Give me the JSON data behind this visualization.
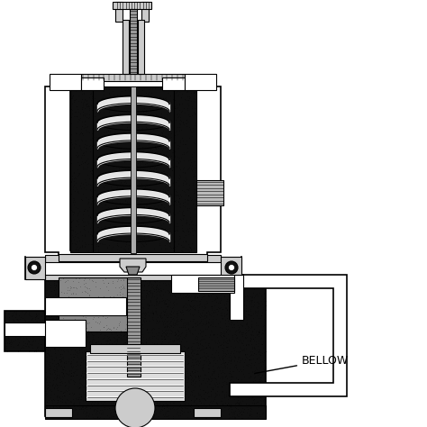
{
  "figsize": [
    4.74,
    4.74
  ],
  "dpi": 100,
  "background_color": "#ffffff",
  "line_color": "#000000",
  "dark_fill": "#111111",
  "speckle_fill": "#333333",
  "mid_fill": "#666666",
  "light_fill": "#cccccc",
  "white_fill": "#ffffff",
  "label_bellow": "BELLOW",
  "label_fontsize": 9
}
